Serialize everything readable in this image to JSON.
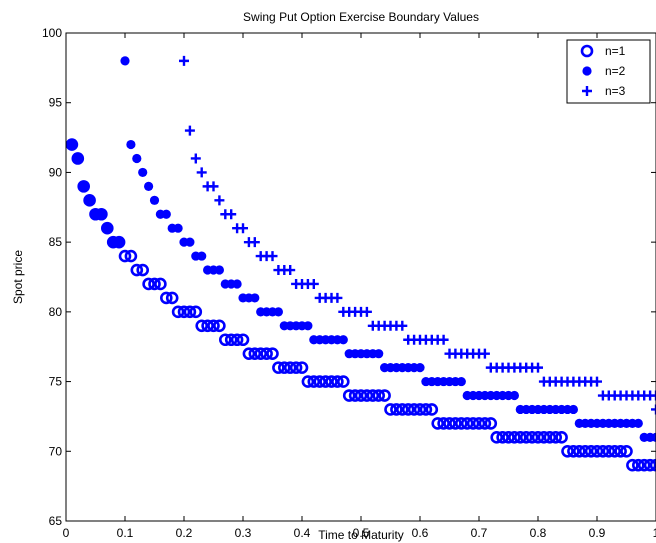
{
  "chart_data": {
    "type": "scatter",
    "title": "Swing Put Option Exercise Boundary Values",
    "xlabel": "Time to Maturity",
    "ylabel": "Spot price",
    "xlim": [
      0,
      1
    ],
    "ylim": [
      65,
      100
    ],
    "xticks": [
      0,
      0.1,
      0.2,
      0.3,
      0.4,
      0.5,
      0.6,
      0.7,
      0.8,
      0.9,
      1
    ],
    "yticks": [
      65,
      70,
      75,
      80,
      85,
      90,
      95,
      100
    ],
    "grid": false,
    "legend_position": "top-right",
    "colors": {
      "series": "#0000ff",
      "axes": "#000000",
      "background": "#ffffff"
    },
    "series": [
      {
        "name": "n=1",
        "marker": "circle-open",
        "points": [
          [
            0.01,
            92
          ],
          [
            0.02,
            91
          ],
          [
            0.03,
            89
          ],
          [
            0.04,
            88
          ],
          [
            0.05,
            87
          ],
          [
            0.06,
            87
          ],
          [
            0.07,
            86
          ],
          [
            0.08,
            85
          ],
          [
            0.09,
            85
          ],
          [
            0.1,
            84
          ],
          [
            0.11,
            84
          ],
          [
            0.12,
            83
          ],
          [
            0.13,
            83
          ],
          [
            0.14,
            82
          ],
          [
            0.15,
            82
          ],
          [
            0.16,
            82
          ],
          [
            0.17,
            81
          ],
          [
            0.18,
            81
          ],
          [
            0.19,
            80
          ],
          [
            0.2,
            80
          ],
          [
            0.21,
            80
          ],
          [
            0.22,
            80
          ],
          [
            0.23,
            79
          ],
          [
            0.24,
            79
          ],
          [
            0.25,
            79
          ],
          [
            0.26,
            79
          ],
          [
            0.27,
            78
          ],
          [
            0.28,
            78
          ],
          [
            0.29,
            78
          ],
          [
            0.3,
            78
          ],
          [
            0.31,
            77
          ],
          [
            0.32,
            77
          ],
          [
            0.33,
            77
          ],
          [
            0.34,
            77
          ],
          [
            0.35,
            77
          ],
          [
            0.36,
            76
          ],
          [
            0.37,
            76
          ],
          [
            0.38,
            76
          ],
          [
            0.39,
            76
          ],
          [
            0.4,
            76
          ],
          [
            0.41,
            75
          ],
          [
            0.42,
            75
          ],
          [
            0.43,
            75
          ],
          [
            0.44,
            75
          ],
          [
            0.45,
            75
          ],
          [
            0.46,
            75
          ],
          [
            0.47,
            75
          ],
          [
            0.48,
            74
          ],
          [
            0.49,
            74
          ],
          [
            0.5,
            74
          ],
          [
            0.51,
            74
          ],
          [
            0.52,
            74
          ],
          [
            0.53,
            74
          ],
          [
            0.54,
            74
          ],
          [
            0.55,
            73
          ],
          [
            0.56,
            73
          ],
          [
            0.57,
            73
          ],
          [
            0.58,
            73
          ],
          [
            0.59,
            73
          ],
          [
            0.6,
            73
          ],
          [
            0.61,
            73
          ],
          [
            0.62,
            73
          ],
          [
            0.63,
            72
          ],
          [
            0.64,
            72
          ],
          [
            0.65,
            72
          ],
          [
            0.66,
            72
          ],
          [
            0.67,
            72
          ],
          [
            0.68,
            72
          ],
          [
            0.69,
            72
          ],
          [
            0.7,
            72
          ],
          [
            0.71,
            72
          ],
          [
            0.72,
            72
          ],
          [
            0.73,
            71
          ],
          [
            0.74,
            71
          ],
          [
            0.75,
            71
          ],
          [
            0.76,
            71
          ],
          [
            0.77,
            71
          ],
          [
            0.78,
            71
          ],
          [
            0.79,
            71
          ],
          [
            0.8,
            71
          ],
          [
            0.81,
            71
          ],
          [
            0.82,
            71
          ],
          [
            0.83,
            71
          ],
          [
            0.84,
            71
          ],
          [
            0.85,
            70
          ],
          [
            0.86,
            70
          ],
          [
            0.87,
            70
          ],
          [
            0.88,
            70
          ],
          [
            0.89,
            70
          ],
          [
            0.9,
            70
          ],
          [
            0.91,
            70
          ],
          [
            0.92,
            70
          ],
          [
            0.93,
            70
          ],
          [
            0.94,
            70
          ],
          [
            0.95,
            70
          ],
          [
            0.96,
            69
          ],
          [
            0.97,
            69
          ],
          [
            0.98,
            69
          ],
          [
            0.99,
            69
          ],
          [
            1.0,
            69
          ]
        ]
      },
      {
        "name": "n=2",
        "marker": "dot",
        "points": [
          [
            0.01,
            92
          ],
          [
            0.02,
            91
          ],
          [
            0.03,
            89
          ],
          [
            0.04,
            88
          ],
          [
            0.05,
            87
          ],
          [
            0.06,
            87
          ],
          [
            0.07,
            86
          ],
          [
            0.08,
            85
          ],
          [
            0.09,
            85
          ],
          [
            0.1,
            98
          ],
          [
            0.11,
            92
          ],
          [
            0.12,
            91
          ],
          [
            0.13,
            90
          ],
          [
            0.14,
            89
          ],
          [
            0.15,
            88
          ],
          [
            0.16,
            87
          ],
          [
            0.17,
            87
          ],
          [
            0.18,
            86
          ],
          [
            0.19,
            86
          ],
          [
            0.2,
            85
          ],
          [
            0.21,
            85
          ],
          [
            0.22,
            84
          ],
          [
            0.23,
            84
          ],
          [
            0.24,
            83
          ],
          [
            0.25,
            83
          ],
          [
            0.26,
            83
          ],
          [
            0.27,
            82
          ],
          [
            0.28,
            82
          ],
          [
            0.29,
            82
          ],
          [
            0.3,
            81
          ],
          [
            0.31,
            81
          ],
          [
            0.32,
            81
          ],
          [
            0.33,
            80
          ],
          [
            0.34,
            80
          ],
          [
            0.35,
            80
          ],
          [
            0.36,
            80
          ],
          [
            0.37,
            79
          ],
          [
            0.38,
            79
          ],
          [
            0.39,
            79
          ],
          [
            0.4,
            79
          ],
          [
            0.41,
            79
          ],
          [
            0.42,
            78
          ],
          [
            0.43,
            78
          ],
          [
            0.44,
            78
          ],
          [
            0.45,
            78
          ],
          [
            0.46,
            78
          ],
          [
            0.47,
            78
          ],
          [
            0.48,
            77
          ],
          [
            0.49,
            77
          ],
          [
            0.5,
            77
          ],
          [
            0.51,
            77
          ],
          [
            0.52,
            77
          ],
          [
            0.53,
            77
          ],
          [
            0.54,
            76
          ],
          [
            0.55,
            76
          ],
          [
            0.56,
            76
          ],
          [
            0.57,
            76
          ],
          [
            0.58,
            76
          ],
          [
            0.59,
            76
          ],
          [
            0.6,
            76
          ],
          [
            0.61,
            75
          ],
          [
            0.62,
            75
          ],
          [
            0.63,
            75
          ],
          [
            0.64,
            75
          ],
          [
            0.65,
            75
          ],
          [
            0.66,
            75
          ],
          [
            0.67,
            75
          ],
          [
            0.68,
            74
          ],
          [
            0.69,
            74
          ],
          [
            0.7,
            74
          ],
          [
            0.71,
            74
          ],
          [
            0.72,
            74
          ],
          [
            0.73,
            74
          ],
          [
            0.74,
            74
          ],
          [
            0.75,
            74
          ],
          [
            0.76,
            74
          ],
          [
            0.77,
            73
          ],
          [
            0.78,
            73
          ],
          [
            0.79,
            73
          ],
          [
            0.8,
            73
          ],
          [
            0.81,
            73
          ],
          [
            0.82,
            73
          ],
          [
            0.83,
            73
          ],
          [
            0.84,
            73
          ],
          [
            0.85,
            73
          ],
          [
            0.86,
            73
          ],
          [
            0.87,
            72
          ],
          [
            0.88,
            72
          ],
          [
            0.89,
            72
          ],
          [
            0.9,
            72
          ],
          [
            0.91,
            72
          ],
          [
            0.92,
            72
          ],
          [
            0.93,
            72
          ],
          [
            0.94,
            72
          ],
          [
            0.95,
            72
          ],
          [
            0.96,
            72
          ],
          [
            0.97,
            72
          ],
          [
            0.98,
            71
          ],
          [
            0.99,
            71
          ],
          [
            1.0,
            71
          ]
        ]
      },
      {
        "name": "n=3",
        "marker": "plus",
        "points": [
          [
            0.2,
            98
          ],
          [
            0.21,
            93
          ],
          [
            0.22,
            91
          ],
          [
            0.23,
            90
          ],
          [
            0.24,
            89
          ],
          [
            0.25,
            89
          ],
          [
            0.26,
            88
          ],
          [
            0.27,
            87
          ],
          [
            0.28,
            87
          ],
          [
            0.29,
            86
          ],
          [
            0.3,
            86
          ],
          [
            0.31,
            85
          ],
          [
            0.32,
            85
          ],
          [
            0.33,
            84
          ],
          [
            0.34,
            84
          ],
          [
            0.35,
            84
          ],
          [
            0.36,
            83
          ],
          [
            0.37,
            83
          ],
          [
            0.38,
            83
          ],
          [
            0.39,
            82
          ],
          [
            0.4,
            82
          ],
          [
            0.41,
            82
          ],
          [
            0.42,
            82
          ],
          [
            0.43,
            81
          ],
          [
            0.44,
            81
          ],
          [
            0.45,
            81
          ],
          [
            0.46,
            81
          ],
          [
            0.47,
            80
          ],
          [
            0.48,
            80
          ],
          [
            0.49,
            80
          ],
          [
            0.5,
            80
          ],
          [
            0.51,
            80
          ],
          [
            0.52,
            79
          ],
          [
            0.53,
            79
          ],
          [
            0.54,
            79
          ],
          [
            0.55,
            79
          ],
          [
            0.56,
            79
          ],
          [
            0.57,
            79
          ],
          [
            0.58,
            78
          ],
          [
            0.59,
            78
          ],
          [
            0.6,
            78
          ],
          [
            0.61,
            78
          ],
          [
            0.62,
            78
          ],
          [
            0.63,
            78
          ],
          [
            0.64,
            78
          ],
          [
            0.65,
            77
          ],
          [
            0.66,
            77
          ],
          [
            0.67,
            77
          ],
          [
            0.68,
            77
          ],
          [
            0.69,
            77
          ],
          [
            0.7,
            77
          ],
          [
            0.71,
            77
          ],
          [
            0.72,
            76
          ],
          [
            0.73,
            76
          ],
          [
            0.74,
            76
          ],
          [
            0.75,
            76
          ],
          [
            0.76,
            76
          ],
          [
            0.77,
            76
          ],
          [
            0.78,
            76
          ],
          [
            0.79,
            76
          ],
          [
            0.8,
            76
          ],
          [
            0.81,
            75
          ],
          [
            0.82,
            75
          ],
          [
            0.83,
            75
          ],
          [
            0.84,
            75
          ],
          [
            0.85,
            75
          ],
          [
            0.86,
            75
          ],
          [
            0.87,
            75
          ],
          [
            0.88,
            75
          ],
          [
            0.89,
            75
          ],
          [
            0.9,
            75
          ],
          [
            0.91,
            74
          ],
          [
            0.92,
            74
          ],
          [
            0.93,
            74
          ],
          [
            0.94,
            74
          ],
          [
            0.95,
            74
          ],
          [
            0.96,
            74
          ],
          [
            0.97,
            74
          ],
          [
            0.98,
            74
          ],
          [
            0.99,
            74
          ],
          [
            1.0,
            74
          ],
          [
            1.0,
            73
          ]
        ]
      }
    ]
  }
}
